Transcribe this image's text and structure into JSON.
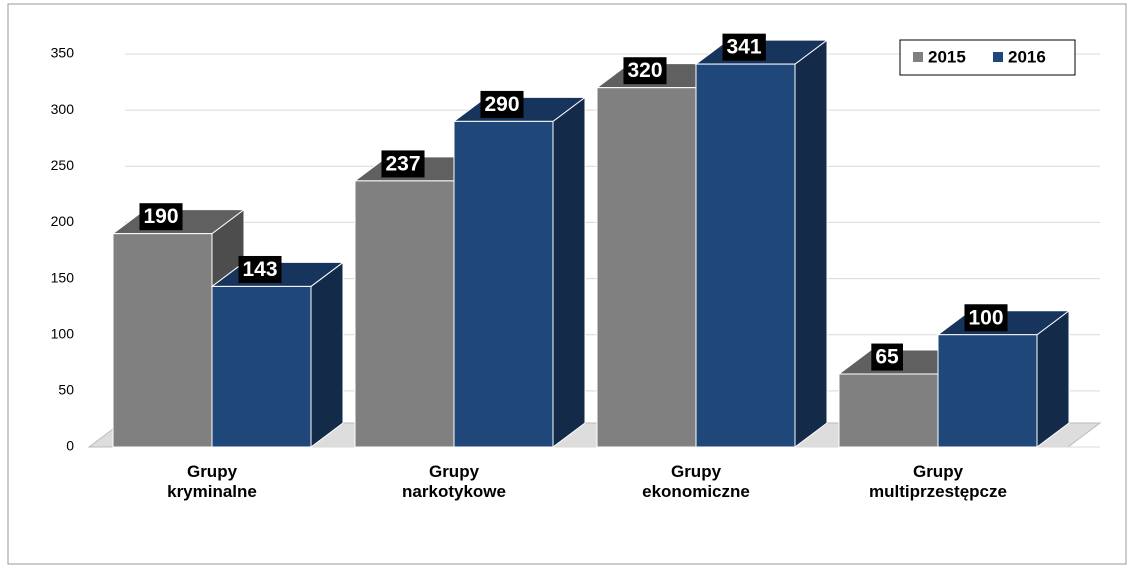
{
  "chart_data": {
    "type": "bar3d",
    "categories": [
      "Grupy kryminalne",
      "Grupy narkotykowe",
      "Grupy ekonomiczne",
      "Grupy multiprzestępcze"
    ],
    "series": [
      {
        "name": "2015",
        "color": "#808080",
        "values": [
          190,
          237,
          320,
          65
        ]
      },
      {
        "name": "2016",
        "color": "#1f477a",
        "values": [
          143,
          290,
          341,
          100
        ]
      }
    ],
    "ylim": [
      0,
      350
    ],
    "yticks": [
      0,
      50,
      100,
      150,
      200,
      250,
      300,
      350
    ],
    "grid": true,
    "legend": "top-right"
  }
}
